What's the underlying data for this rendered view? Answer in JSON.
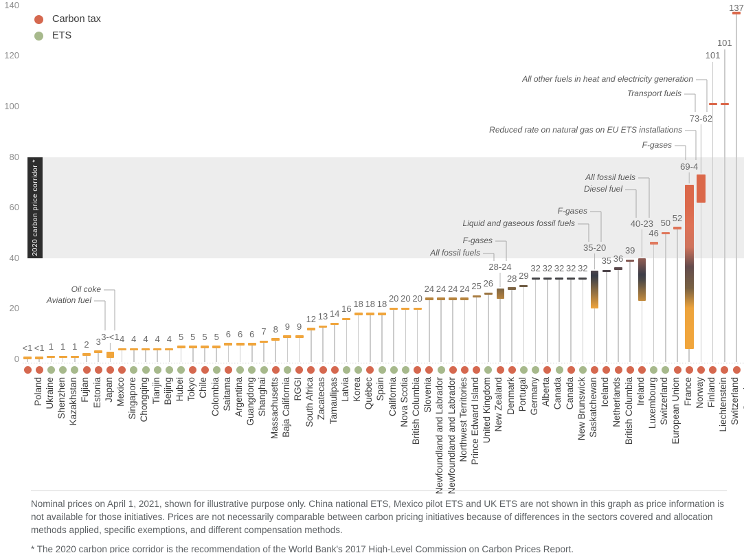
{
  "legend": {
    "items": [
      {
        "label": "Carbon tax",
        "instrument": "tax"
      },
      {
        "label": "ETS",
        "instrument": "ets"
      }
    ]
  },
  "colors": {
    "tax": "#D5684F",
    "ets": "#A7B98C",
    "corridor_band": "#EDEDED",
    "corridor_label_bg": "#2D2D2D",
    "value_scale": [
      [
        0,
        "#F0A53C"
      ],
      [
        20,
        "#F0A53C"
      ],
      [
        33,
        "#353B47"
      ],
      [
        46,
        "#E07A5F"
      ],
      [
        62,
        "#DB684A"
      ],
      [
        140,
        "#DB684A"
      ]
    ]
  },
  "chart_data": {
    "type": "bar",
    "subtype": "ranged lollipop / dot-price chart",
    "title": "",
    "xlabel": "",
    "ylabel": "",
    "ylim": [
      0,
      140
    ],
    "y_ticks": [
      0,
      20,
      40,
      60,
      80,
      100,
      120,
      140
    ],
    "grid": false,
    "legend_position": "top-left",
    "corridor_band": {
      "label": "2020 carbon price corridor *",
      "from": 40,
      "to": 80
    },
    "points": [
      {
        "name": "Poland",
        "instrument": "tax",
        "label": "<1",
        "top": 0.6,
        "bottom": null
      },
      {
        "name": "Ukraine",
        "instrument": "tax",
        "label": "<1",
        "top": 0.6,
        "bottom": null
      },
      {
        "name": "Shenzhen",
        "instrument": "ets",
        "label": "1",
        "top": 1,
        "bottom": null
      },
      {
        "name": "Kazakhstan",
        "instrument": "ets",
        "label": "1",
        "top": 1,
        "bottom": null
      },
      {
        "name": "Fujian",
        "instrument": "ets",
        "label": "1",
        "top": 1,
        "bottom": null
      },
      {
        "name": "Estonia",
        "instrument": "tax",
        "label": "2",
        "top": 2,
        "bottom": null
      },
      {
        "name": "Japan",
        "instrument": "tax",
        "label": "3",
        "top": 3,
        "bottom": null
      },
      {
        "name": "Mexico",
        "instrument": "tax",
        "label": "3-<1",
        "top": 3,
        "bottom": 0.5
      },
      {
        "name": "Singapore",
        "instrument": "tax",
        "label": "4",
        "top": 4,
        "bottom": null
      },
      {
        "name": "Chongqing",
        "instrument": "ets",
        "label": "4",
        "top": 4,
        "bottom": null
      },
      {
        "name": "Tianjin",
        "instrument": "ets",
        "label": "4",
        "top": 4,
        "bottom": null
      },
      {
        "name": "Beijing",
        "instrument": "ets",
        "label": "4",
        "top": 4,
        "bottom": null
      },
      {
        "name": "Hubei",
        "instrument": "ets",
        "label": "4",
        "top": 4,
        "bottom": null
      },
      {
        "name": "Tokyo",
        "instrument": "ets",
        "label": "5",
        "top": 5,
        "bottom": null
      },
      {
        "name": "Chile",
        "instrument": "tax",
        "label": "5",
        "top": 5,
        "bottom": null
      },
      {
        "name": "Colombia",
        "instrument": "tax",
        "label": "5",
        "top": 5,
        "bottom": null
      },
      {
        "name": "Saitama",
        "instrument": "ets",
        "label": "5",
        "top": 5,
        "bottom": null
      },
      {
        "name": "Argentina",
        "instrument": "tax",
        "label": "6",
        "top": 6,
        "bottom": null
      },
      {
        "name": "Guangdong",
        "instrument": "ets",
        "label": "6",
        "top": 6,
        "bottom": null
      },
      {
        "name": "Shanghai",
        "instrument": "ets",
        "label": "6",
        "top": 6,
        "bottom": null
      },
      {
        "name": "Massachusetts",
        "instrument": "ets",
        "label": "7",
        "top": 7,
        "bottom": null
      },
      {
        "name": "Baja California",
        "instrument": "tax",
        "label": "8",
        "top": 8,
        "bottom": null
      },
      {
        "name": "RGGI",
        "instrument": "ets",
        "label": "9",
        "top": 9,
        "bottom": null
      },
      {
        "name": "South Africa",
        "instrument": "tax",
        "label": "9",
        "top": 9,
        "bottom": null
      },
      {
        "name": "Zacatecas",
        "instrument": "tax",
        "label": "12",
        "top": 12,
        "bottom": null
      },
      {
        "name": "Tamaulipas",
        "instrument": "tax",
        "label": "13",
        "top": 13,
        "bottom": null
      },
      {
        "name": "Latvia",
        "instrument": "tax",
        "label": "14",
        "top": 14,
        "bottom": null
      },
      {
        "name": "Korea",
        "instrument": "ets",
        "label": "16",
        "top": 16,
        "bottom": null
      },
      {
        "name": "Québec",
        "instrument": "ets",
        "label": "18",
        "top": 18,
        "bottom": null
      },
      {
        "name": "Spain",
        "instrument": "tax",
        "label": "18",
        "top": 18,
        "bottom": null
      },
      {
        "name": "California",
        "instrument": "ets",
        "label": "18",
        "top": 18,
        "bottom": null
      },
      {
        "name": "Nova Scotia",
        "instrument": "ets",
        "label": "20",
        "top": 20,
        "bottom": null
      },
      {
        "name": "British Columbia",
        "instrument": "ets",
        "label": "20",
        "top": 20,
        "bottom": null
      },
      {
        "name": "Slovenia",
        "instrument": "tax",
        "label": "20",
        "top": 20,
        "bottom": null
      },
      {
        "name": "Newfoundland and Labrador",
        "instrument": "tax",
        "label": "24",
        "top": 24,
        "bottom": null
      },
      {
        "name": "Newfoundland and Labrador",
        "instrument": "ets",
        "label": "24",
        "top": 24,
        "bottom": null
      },
      {
        "name": "Northwest Territories",
        "instrument": "tax",
        "label": "24",
        "top": 24,
        "bottom": null
      },
      {
        "name": "Prince Edward Island",
        "instrument": "tax",
        "label": "24",
        "top": 24,
        "bottom": null
      },
      {
        "name": "United Kingdom",
        "instrument": "tax",
        "label": "25",
        "top": 25,
        "bottom": null
      },
      {
        "name": "New Zealand",
        "instrument": "ets",
        "label": "26",
        "top": 26,
        "bottom": null
      },
      {
        "name": "Denmark",
        "instrument": "tax",
        "label": "28-24",
        "top": 28,
        "bottom": 24
      },
      {
        "name": "Portugal",
        "instrument": "tax",
        "label": "28",
        "top": 28,
        "bottom": null
      },
      {
        "name": "Germany",
        "instrument": "ets",
        "label": "29",
        "top": 29,
        "bottom": null
      },
      {
        "name": "Alberta",
        "instrument": "ets",
        "label": "32",
        "top": 32,
        "bottom": null
      },
      {
        "name": "Canada",
        "instrument": "tax",
        "label": "32",
        "top": 32,
        "bottom": null
      },
      {
        "name": "Canada",
        "instrument": "ets",
        "label": "32",
        "top": 32,
        "bottom": null
      },
      {
        "name": "New Brunswick",
        "instrument": "tax",
        "label": "32",
        "top": 32,
        "bottom": null
      },
      {
        "name": "Saskatchewan",
        "instrument": "ets",
        "label": "32",
        "top": 32,
        "bottom": null
      },
      {
        "name": "Iceland",
        "instrument": "tax",
        "label": "35-20",
        "top": 35,
        "bottom": 20
      },
      {
        "name": "Netherlands",
        "instrument": "tax",
        "label": "35",
        "top": 35,
        "bottom": null
      },
      {
        "name": "British Columbia",
        "instrument": "tax",
        "label": "36",
        "top": 36,
        "bottom": null
      },
      {
        "name": "Ireland",
        "instrument": "tax",
        "label": "39",
        "top": 39,
        "bottom": null
      },
      {
        "name": "Luxembourg",
        "instrument": "tax",
        "label": "40-23",
        "top": 40,
        "bottom": 23
      },
      {
        "name": "Switzerland",
        "instrument": "ets",
        "label": "46",
        "top": 46,
        "bottom": null
      },
      {
        "name": "European Union",
        "instrument": "ets",
        "label": "50",
        "top": 50,
        "bottom": null
      },
      {
        "name": "France",
        "instrument": "tax",
        "label": "52",
        "top": 52,
        "bottom": null
      },
      {
        "name": "Norway",
        "instrument": "tax",
        "label": "69-4",
        "top": 69,
        "bottom": 4
      },
      {
        "name": "Finland",
        "instrument": "tax",
        "label": "73-62",
        "top": 73,
        "bottom": 62
      },
      {
        "name": "Liechtenstein",
        "instrument": "tax",
        "label": "101",
        "top": 101,
        "bottom": null
      },
      {
        "name": "Switzerland",
        "instrument": "tax",
        "label": "101",
        "top": 101,
        "bottom": null
      },
      {
        "name": "Sweden",
        "instrument": "tax",
        "label": "137",
        "top": 137,
        "bottom": null
      }
    ],
    "annotations": [
      {
        "target": 7,
        "slot": "upper",
        "text": "Oil coke"
      },
      {
        "target": 7,
        "slot": "lower",
        "text": "Aviation fuel"
      },
      {
        "target": 40,
        "slot": "upper",
        "text": "F-gases"
      },
      {
        "target": 40,
        "slot": "lower",
        "text": "All fossil fuels"
      },
      {
        "target": 48,
        "slot": "upper",
        "text": "F-gases"
      },
      {
        "target": 48,
        "slot": "lower",
        "text": "Liquid and gaseous fossil fuels"
      },
      {
        "target": 52,
        "slot": "upper",
        "text": "All fossil fuels"
      },
      {
        "target": 52,
        "slot": "lower",
        "text": "Diesel fuel"
      },
      {
        "target": 56,
        "slot": "upper",
        "text": "Reduced rate on natural gas on EU ETS installations"
      },
      {
        "target": 56,
        "slot": "lower",
        "text": "F-gases"
      },
      {
        "target": 57,
        "slot": "upper",
        "text": "All other fuels in heat and electricity generation"
      },
      {
        "target": 57,
        "slot": "lower",
        "text": "Transport fuels"
      }
    ]
  },
  "footnotes": {
    "main": "Nominal prices on April 1, 2021, shown for illustrative purpose only. China national ETS, Mexico pilot ETS and UK ETS are not shown in this graph as price information is not available for those initiatives. Prices are not necessarily comparable between carbon pricing initiatives because of differences in the sectors covered and allocation methods applied, specific exemptions, and different compensation methods.",
    "corridor": "* The 2020 carbon price corridor is the recommendation of the World Bank's 2017 High-Level Commission on Carbon Prices Report."
  }
}
